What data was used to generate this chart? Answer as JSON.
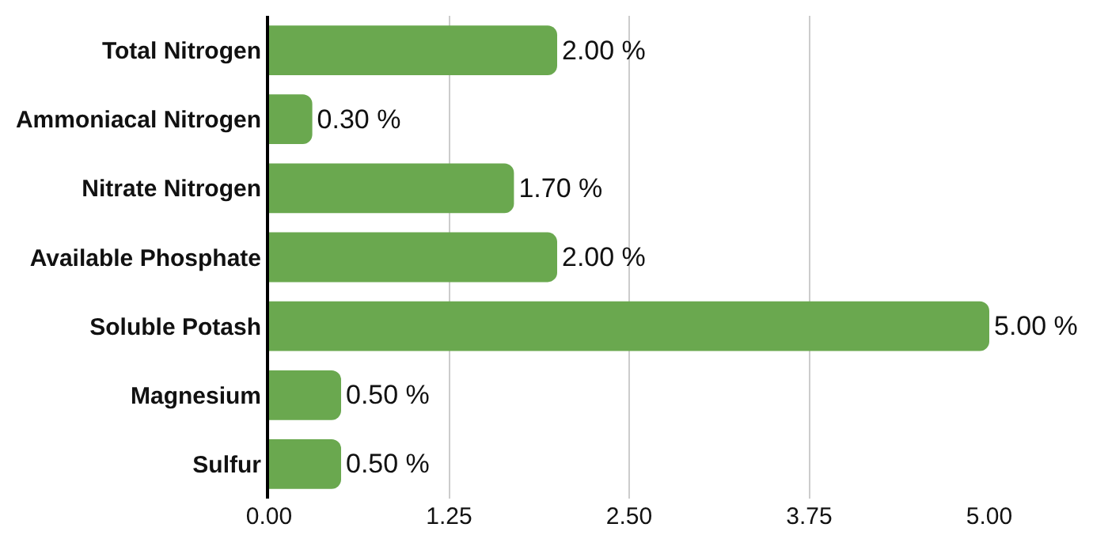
{
  "chart_data": {
    "type": "bar",
    "orientation": "horizontal",
    "categories": [
      "Total Nitrogen",
      "Ammoniacal Nitrogen",
      "Nitrate Nitrogen",
      "Available Phosphate",
      "Soluble Potash",
      "Magnesium",
      "Sulfur"
    ],
    "values": [
      2.0,
      0.3,
      1.7,
      2.0,
      5.0,
      0.5,
      0.5
    ],
    "value_labels": [
      "2.00 %",
      "0.30 %",
      "1.70 %",
      "2.00 %",
      "5.00 %",
      "0.50 %",
      "0.50 %"
    ],
    "color": "#6aa84f",
    "xlim": [
      0,
      5
    ],
    "xticks": [
      {
        "value": 0,
        "label": "0.00"
      },
      {
        "value": 1.25,
        "label": "1.25"
      },
      {
        "value": 2.5,
        "label": "2.50"
      },
      {
        "value": 3.75,
        "label": "3.75"
      },
      {
        "value": 5,
        "label": "5.00"
      }
    ],
    "grid": "x"
  }
}
